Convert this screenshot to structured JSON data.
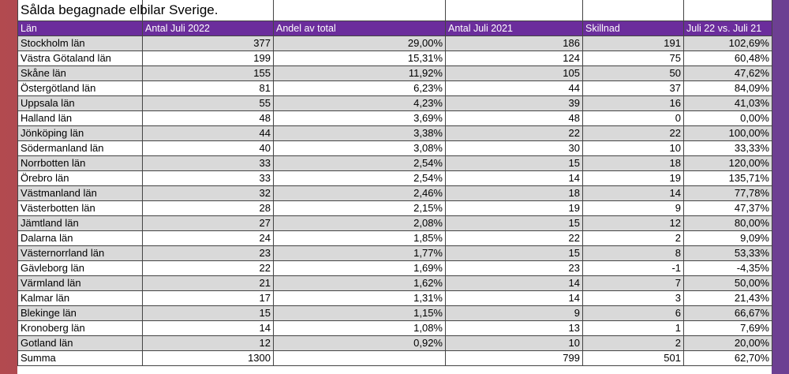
{
  "table": {
    "title": "Sålda begagnade elbilar Sverige.",
    "headers": [
      "Län",
      "Antal Juli 2022",
      "Andel av total",
      "Antal Juli 2021",
      "Skillnad",
      "Juli 22 vs. Juli 21"
    ],
    "rows": [
      [
        "Stockholm län",
        377,
        "29,00%",
        186,
        191,
        "102,69%"
      ],
      [
        "Västra Götaland län",
        199,
        "15,31%",
        124,
        75,
        "60,48%"
      ],
      [
        "Skåne län",
        155,
        "11,92%",
        105,
        50,
        "47,62%"
      ],
      [
        "Östergötland län",
        81,
        "6,23%",
        44,
        37,
        "84,09%"
      ],
      [
        "Uppsala län",
        55,
        "4,23%",
        39,
        16,
        "41,03%"
      ],
      [
        "Halland län",
        48,
        "3,69%",
        48,
        0,
        "0,00%"
      ],
      [
        "Jönköping län",
        44,
        "3,38%",
        22,
        22,
        "100,00%"
      ],
      [
        "Södermanland län",
        40,
        "3,08%",
        30,
        10,
        "33,33%"
      ],
      [
        "Norrbotten län",
        33,
        "2,54%",
        15,
        18,
        "120,00%"
      ],
      [
        "Örebro län",
        33,
        "2,54%",
        14,
        19,
        "135,71%"
      ],
      [
        "Västmanland län",
        32,
        "2,46%",
        18,
        14,
        "77,78%"
      ],
      [
        "Västerbotten län",
        28,
        "2,15%",
        19,
        9,
        "47,37%"
      ],
      [
        "Jämtland län",
        27,
        "2,08%",
        15,
        12,
        "80,00%"
      ],
      [
        "Dalarna län",
        24,
        "1,85%",
        22,
        2,
        "9,09%"
      ],
      [
        "Västernorrland län",
        23,
        "1,77%",
        15,
        8,
        "53,33%"
      ],
      [
        "Gävleborg län",
        22,
        "1,69%",
        23,
        -1,
        "-4,35%"
      ],
      [
        "Värmland län",
        21,
        "1,62%",
        14,
        7,
        "50,00%"
      ],
      [
        "Kalmar län",
        17,
        "1,31%",
        14,
        3,
        "21,43%"
      ],
      [
        "Blekinge län",
        15,
        "1,15%",
        9,
        6,
        "66,67%"
      ],
      [
        "Kronoberg län",
        14,
        "1,08%",
        13,
        1,
        "7,69%"
      ],
      [
        "Gotland län",
        12,
        "0,92%",
        10,
        2,
        "20,00%"
      ]
    ],
    "total": {
      "label": "Summa",
      "antal_2022": 1300,
      "antal_2021": 799,
      "skillnad": 501,
      "change": "62,70%"
    }
  }
}
